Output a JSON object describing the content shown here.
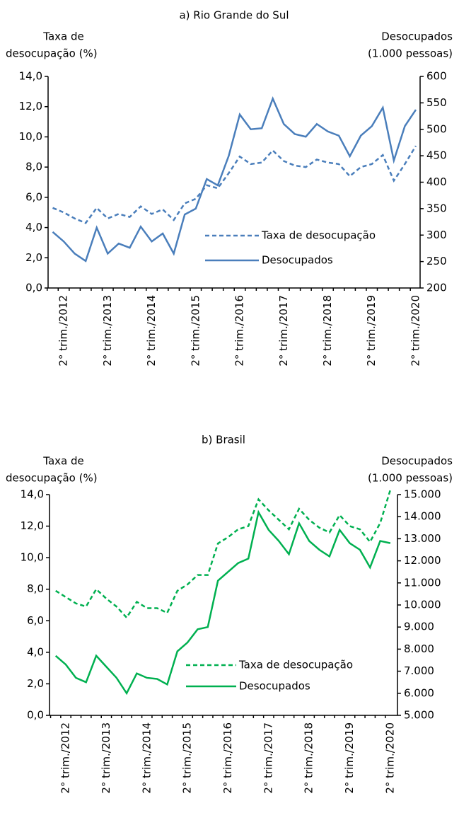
{
  "chart_data": [
    {
      "type": "line",
      "title": "a) Rio Grande do Sul",
      "ylabel": [
        "Taxa de",
        "desocupação (%)"
      ],
      "y2label": [
        "Desocupados",
        "(1.000 pessoas)"
      ],
      "categories": [
        null,
        "2° trim./2012",
        null,
        null,
        null,
        "2° trim./2013",
        null,
        null,
        null,
        "2° trim./2014",
        null,
        null,
        null,
        "2° trim./2015",
        null,
        null,
        null,
        "2° trim./2016",
        null,
        null,
        null,
        "2° trim./2017",
        null,
        null,
        null,
        "2° trim./2018",
        null,
        null,
        null,
        "2° trim./2019",
        null,
        null,
        null,
        "2° trim./2020"
      ],
      "series": [
        {
          "name": "Taxa de desocupação",
          "color": "#4a7ebb",
          "style": "dashed",
          "axis": "y",
          "values": [
            5.3,
            5.0,
            4.6,
            4.3,
            5.3,
            4.6,
            4.9,
            4.7,
            5.4,
            4.9,
            5.2,
            4.5,
            5.6,
            5.9,
            6.8,
            6.6,
            7.6,
            8.7,
            8.2,
            8.3,
            9.1,
            8.4,
            8.1,
            8.0,
            8.5,
            8.3,
            8.2,
            7.4,
            8.0,
            8.2,
            8.8,
            7.1,
            8.2,
            9.4
          ]
        },
        {
          "name": "Desocupados",
          "color": "#4a7ebb",
          "style": "solid",
          "axis": "y2",
          "values": [
            306,
            288,
            265,
            251,
            314,
            265,
            284,
            276,
            316,
            288,
            303,
            265,
            339,
            350,
            406,
            394,
            450,
            528,
            500,
            502,
            558,
            510,
            491,
            486,
            510,
            496,
            488,
            449,
            488,
            506,
            541,
            441,
            506,
            537
          ]
        }
      ],
      "ylim": [
        0,
        14
      ],
      "yticks": [
        {
          "value": 0,
          "label": "0,0"
        },
        {
          "value": 2,
          "label": "2,0"
        },
        {
          "value": 4,
          "label": "4,0"
        },
        {
          "value": 6,
          "label": "6,0"
        },
        {
          "value": 8,
          "label": "8,0"
        },
        {
          "value": 10,
          "label": "10,0"
        },
        {
          "value": 12,
          "label": "12,0"
        },
        {
          "value": 14,
          "label": "14,0"
        }
      ],
      "y2lim": [
        200,
        600
      ],
      "y2ticks": [
        200,
        250,
        300,
        350,
        400,
        450,
        500,
        550,
        600
      ],
      "legend": "lower right",
      "grid": false
    },
    {
      "type": "line",
      "title": "b) Brasil",
      "ylabel": [
        "Taxa de",
        "desocupação (%)"
      ],
      "y2label": [
        "Desocupados",
        "(1.000 pessoas)"
      ],
      "categories": [
        null,
        "2° trim./2012",
        null,
        null,
        null,
        "2° trim./2013",
        null,
        null,
        null,
        "2° trim./2014",
        null,
        null,
        null,
        "2° trim./2015",
        null,
        null,
        null,
        "2° trim./2016",
        null,
        null,
        null,
        "2° trim./2017",
        null,
        null,
        null,
        "2° trim./2018",
        null,
        null,
        null,
        "2° trim./2019",
        null,
        null,
        null,
        "2° trim./2020"
      ],
      "series": [
        {
          "name": "Taxa de desocupação",
          "color": "#00b050",
          "style": "dashed",
          "axis": "y",
          "values": [
            7.9,
            7.5,
            7.1,
            6.9,
            8.0,
            7.4,
            6.9,
            6.2,
            7.2,
            6.8,
            6.8,
            6.5,
            7.9,
            8.3,
            8.9,
            8.9,
            10.9,
            11.3,
            11.8,
            12.0,
            13.7,
            13.0,
            12.4,
            11.8,
            13.1,
            12.4,
            11.9,
            11.6,
            12.7,
            12.0,
            11.8,
            11.0,
            12.2,
            14.3
          ]
        },
        {
          "name": "Desocupados",
          "color": "#00b050",
          "style": "solid",
          "axis": "y2",
          "values": [
            7700,
            7300,
            6700,
            6500,
            7700,
            7200,
            6700,
            6000,
            6900,
            6700,
            6650,
            6400,
            7900,
            8300,
            8900,
            9000,
            11100,
            11500,
            11900,
            12100,
            14200,
            13400,
            12900,
            12300,
            13700,
            12900,
            12500,
            12200,
            13400,
            12800,
            12500,
            11700,
            12900,
            12800
          ]
        }
      ],
      "ylim": [
        0,
        14
      ],
      "yticks": [
        {
          "value": 0,
          "label": "0,0"
        },
        {
          "value": 2,
          "label": "2,0"
        },
        {
          "value": 4,
          "label": "4,0"
        },
        {
          "value": 6,
          "label": "6,0"
        },
        {
          "value": 8,
          "label": "8,0"
        },
        {
          "value": 10,
          "label": "10,0"
        },
        {
          "value": 12,
          "label": "12,0"
        },
        {
          "value": 14,
          "label": "14,0"
        }
      ],
      "y2lim": [
        5000,
        15000
      ],
      "y2ticks": [
        {
          "value": 5000,
          "label": "5.000"
        },
        {
          "value": 6000,
          "label": "6.000"
        },
        {
          "value": 7000,
          "label": "7.000"
        },
        {
          "value": 8000,
          "label": "8.000"
        },
        {
          "value": 9000,
          "label": "9.000"
        },
        {
          "value": 10000,
          "label": "10.000"
        },
        {
          "value": 11000,
          "label": "11.000"
        },
        {
          "value": 12000,
          "label": "12.000"
        },
        {
          "value": 13000,
          "label": "13.000"
        },
        {
          "value": 14000,
          "label": "14.000"
        },
        {
          "value": 15000,
          "label": "15.000"
        }
      ],
      "legend": "lower right",
      "grid": false
    }
  ]
}
